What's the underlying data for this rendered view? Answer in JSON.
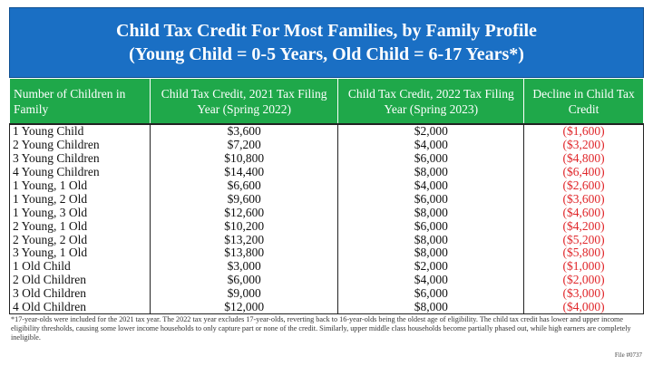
{
  "title": {
    "line1": "Child Tax Credit For Most Families, by Family Profile",
    "line2": "(Young Child = 0-5 Years, Old Child = 6-17 Years*)"
  },
  "table": {
    "headers": [
      "Number of Children in Family",
      "Child Tax Credit, 2021 Tax Filing Year (Spring 2022)",
      "Child Tax Credit, 2022 Tax Filing Year (Spring 2023)",
      "Decline in Child Tax Credit"
    ],
    "rows": [
      [
        "1 Young Child",
        "$3,600",
        "$2,000",
        "($1,600)"
      ],
      [
        "2 Young Children",
        "$7,200",
        "$4,000",
        "($3,200)"
      ],
      [
        "3 Young Children",
        "$10,800",
        "$6,000",
        "($4,800)"
      ],
      [
        "4 Young Children",
        "$14,400",
        "$8,000",
        "($6,400)"
      ],
      [
        "1 Young, 1 Old",
        "$6,600",
        "$4,000",
        "($2,600)"
      ],
      [
        "1 Young, 2 Old",
        "$9,600",
        "$6,000",
        "($3,600)"
      ],
      [
        "1 Young, 3 Old",
        "$12,600",
        "$8,000",
        "($4,600)"
      ],
      [
        "2 Young, 1 Old",
        "$10,200",
        "$6,000",
        "($4,200)"
      ],
      [
        "2 Young, 2 Old",
        "$13,200",
        "$8,000",
        "($5,200)"
      ],
      [
        "3 Young, 1 Old",
        "$13,800",
        "$8,000",
        "($5,800)"
      ],
      [
        "1 Old Child",
        "$3,000",
        "$2,000",
        "($1,000)"
      ],
      [
        "2 Old Children",
        "$6,000",
        "$4,000",
        "($2,000)"
      ],
      [
        "3 Old Children",
        "$9,000",
        "$6,000",
        "($3,000)"
      ],
      [
        "4 Old Children",
        "$12,000",
        "$8,000",
        "($4,000)"
      ]
    ]
  },
  "footnote": "*17-year-olds were included for the 2021 tax year. The 2022 tax year excludes 17-year-olds, reverting back to 16-year-olds being the oldest age of eligibility. The child tax credit has lower and upper income eligibility thresholds, causing some lower income households to only capture part or none of the credit. Similarly, upper middle class households become partially phased out, while high earners are completely ineligible.",
  "file": "File #0737",
  "colors": {
    "title_bg": "#1a6fc4",
    "header_bg": "#1fa84a",
    "decline_text": "#e0262a"
  }
}
